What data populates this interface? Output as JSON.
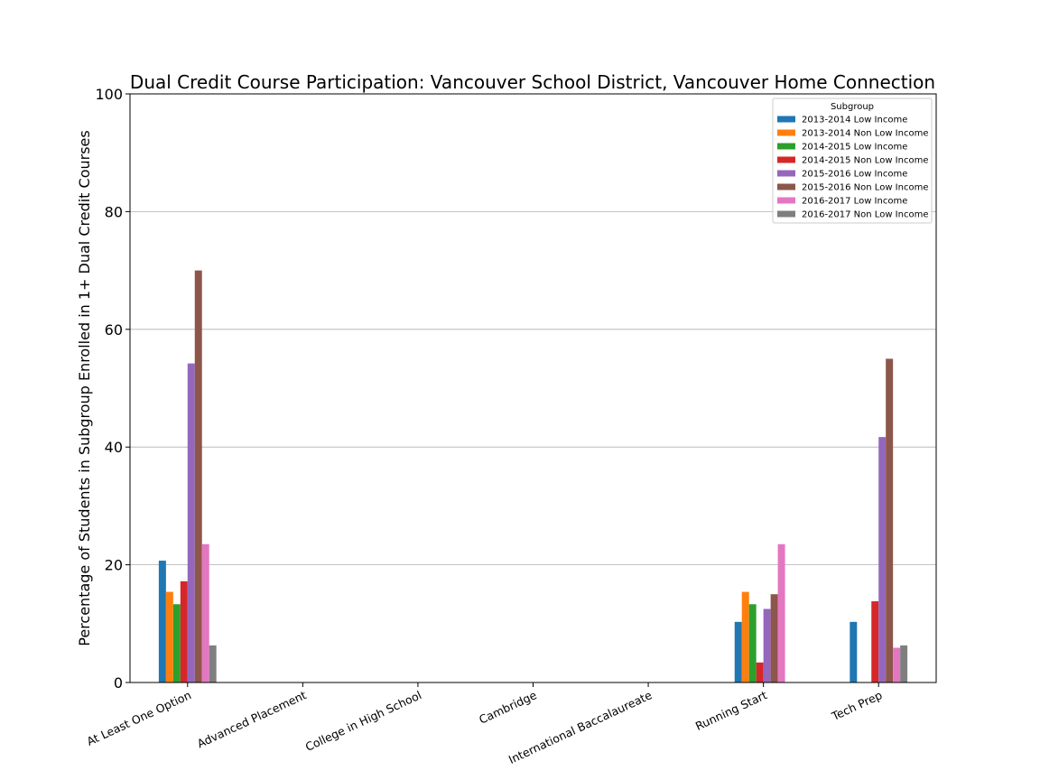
{
  "chart_data": {
    "type": "bar",
    "title": "Dual Credit Course Participation: Vancouver School District, Vancouver Home Connection",
    "xlabel": "",
    "ylabel": "Percentage of Students in Subgroup Enrolled in 1+ Dual Credit Courses",
    "ylim": [
      0,
      100
    ],
    "yticks": [
      0,
      20,
      40,
      60,
      80,
      100
    ],
    "grid": "y",
    "legend_title": "Subgroup",
    "legend_position": "top-right",
    "categories": [
      "At Least One Option",
      "Advanced Placement",
      "College in High School",
      "Cambridge",
      "International Baccalaureate",
      "Running Start",
      "Tech Prep"
    ],
    "series": [
      {
        "name": "2013-2014 Low Income",
        "color": "#1f77b4",
        "values": [
          20.7,
          0,
          0,
          0,
          0,
          10.3,
          10.3
        ]
      },
      {
        "name": "2013-2014 Non Low Income",
        "color": "#ff7f0e",
        "values": [
          15.4,
          0,
          0,
          0,
          0,
          15.4,
          0
        ]
      },
      {
        "name": "2014-2015 Low Income",
        "color": "#2ca02c",
        "values": [
          13.3,
          0,
          0,
          0,
          0,
          13.3,
          0
        ]
      },
      {
        "name": "2014-2015 Non Low Income",
        "color": "#d62728",
        "values": [
          17.2,
          0,
          0,
          0,
          0,
          3.4,
          13.8
        ]
      },
      {
        "name": "2015-2016 Low Income",
        "color": "#9467bd",
        "values": [
          54.2,
          0,
          0,
          0,
          0,
          12.5,
          41.7
        ]
      },
      {
        "name": "2015-2016 Non Low Income",
        "color": "#8c564b",
        "values": [
          70.0,
          0,
          0,
          0,
          0,
          15.0,
          55.0
        ]
      },
      {
        "name": "2016-2017 Low Income",
        "color": "#e377c2",
        "values": [
          23.5,
          0,
          0,
          0,
          0,
          23.5,
          5.9
        ]
      },
      {
        "name": "2016-2017 Non Low Income",
        "color": "#7f7f7f",
        "values": [
          6.3,
          0,
          0,
          0,
          0,
          0,
          6.3
        ]
      }
    ]
  }
}
